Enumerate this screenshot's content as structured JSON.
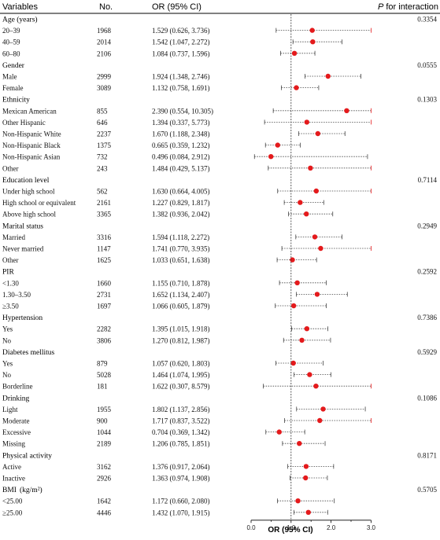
{
  "headers": {
    "variables": "Variables",
    "no": "No.",
    "or": "OR (95% CI)",
    "p_prefix": "P",
    "p_rest": " for interaction"
  },
  "axis": {
    "xlabel": "OR (95% CI)",
    "ticks": [
      "0.0",
      "1.0",
      "2.0",
      "3.0"
    ]
  },
  "chart_data": {
    "type": "forest",
    "xlabel": "OR (95% CI)",
    "xlim": [
      0,
      3
    ],
    "reference_line": 1,
    "marker_color": "#e41a1c",
    "rows": [
      {
        "kind": "group",
        "label": "Age (years)",
        "p": "0.3354"
      },
      {
        "kind": "item",
        "label": "20–39",
        "n": "1968",
        "ci_text": "1.529 (0.626, 3.736)",
        "or": 1.529,
        "lo": 0.626,
        "hi": 3.736
      },
      {
        "kind": "item",
        "label": "40–59",
        "n": "2014",
        "ci_text": "1.542 (1.047, 2.272)",
        "or": 1.542,
        "lo": 1.047,
        "hi": 2.272
      },
      {
        "kind": "item",
        "label": "60–80",
        "n": "2106",
        "ci_text": "1.084 (0.737, 1.596)",
        "or": 1.084,
        "lo": 0.737,
        "hi": 1.596
      },
      {
        "kind": "group",
        "label": "Gender",
        "p": "0.0555"
      },
      {
        "kind": "item",
        "label": "Male",
        "n": "2999",
        "ci_text": "1.924 (1.348, 2.746)",
        "or": 1.924,
        "lo": 1.348,
        "hi": 2.746
      },
      {
        "kind": "item",
        "label": "Female",
        "n": "3089",
        "ci_text": "1.132 (0.758, 1.691)",
        "or": 1.132,
        "lo": 0.758,
        "hi": 1.691
      },
      {
        "kind": "group",
        "label": "Ethnicity",
        "p": "0.1303"
      },
      {
        "kind": "item",
        "label": "Mexican American",
        "n": "855",
        "ci_text": "2.390 (0.554, 10.305)",
        "or": 2.39,
        "lo": 0.554,
        "hi": 10.305
      },
      {
        "kind": "item",
        "label": "Other Hispanic",
        "n": "646",
        "ci_text": "1.394 (0.337, 5.773)",
        "or": 1.394,
        "lo": 0.337,
        "hi": 5.773
      },
      {
        "kind": "item",
        "label": "Non-Hispanic White",
        "n": "2237",
        "ci_text": "1.670 (1.188, 2.348)",
        "or": 1.67,
        "lo": 1.188,
        "hi": 2.348
      },
      {
        "kind": "item",
        "label": "Non-Hispanic Black",
        "n": "1375",
        "ci_text": "0.665 (0.359, 1.232)",
        "or": 0.665,
        "lo": 0.359,
        "hi": 1.232
      },
      {
        "kind": "item",
        "label": "Non-Hispanic Asian",
        "n": "732",
        "ci_text": "0.496 (0.084, 2.912)",
        "or": 0.496,
        "lo": 0.084,
        "hi": 2.912
      },
      {
        "kind": "item",
        "label": "Other",
        "n": "243",
        "ci_text": "1.484 (0.429, 5.137)",
        "or": 1.484,
        "lo": 0.429,
        "hi": 5.137
      },
      {
        "kind": "group",
        "label": "Education level",
        "p": "0.7114"
      },
      {
        "kind": "item",
        "label": "Under high school",
        "n": "562",
        "ci_text": "1.630 (0.664, 4.005)",
        "or": 1.63,
        "lo": 0.664,
        "hi": 4.005
      },
      {
        "kind": "item",
        "label": "High school or equivalent",
        "n": "2161",
        "ci_text": "1.227 (0.829, 1.817)",
        "or": 1.227,
        "lo": 0.829,
        "hi": 1.817
      },
      {
        "kind": "item",
        "label": "Above high school",
        "n": "3365",
        "ci_text": "1.382 (0.936, 2.042)",
        "or": 1.382,
        "lo": 0.936,
        "hi": 2.042
      },
      {
        "kind": "group",
        "label": "Marital status",
        "p": "0.2949"
      },
      {
        "kind": "item",
        "label": "Married",
        "n": "3316",
        "ci_text": "1.594 (1.118, 2.272)",
        "or": 1.594,
        "lo": 1.118,
        "hi": 2.272
      },
      {
        "kind": "item",
        "label": "Never married",
        "n": "1147",
        "ci_text": "1.741 (0.770, 3.935)",
        "or": 1.741,
        "lo": 0.77,
        "hi": 3.935
      },
      {
        "kind": "item",
        "label": "Other",
        "n": "1625",
        "ci_text": "1.033 (0.651, 1.638)",
        "or": 1.033,
        "lo": 0.651,
        "hi": 1.638
      },
      {
        "kind": "group",
        "label": "PIR",
        "p": "0.2592"
      },
      {
        "kind": "item",
        "label": "<1.30",
        "n": "1660",
        "ci_text": "1.155 (0.710, 1.878)",
        "or": 1.155,
        "lo": 0.71,
        "hi": 1.878
      },
      {
        "kind": "item",
        "label": "1.30–3.50",
        "n": "2731",
        "ci_text": "1.652 (1.134, 2.407)",
        "or": 1.652,
        "lo": 1.134,
        "hi": 2.407
      },
      {
        "kind": "item",
        "label": "≥3.50",
        "n": "1697",
        "ci_text": "1.066 (0.605, 1.879)",
        "or": 1.066,
        "lo": 0.605,
        "hi": 1.879
      },
      {
        "kind": "group",
        "label": "Hypertension",
        "p": "0.7386"
      },
      {
        "kind": "item",
        "label": "Yes",
        "n": "2282",
        "ci_text": "1.395 (1.015, 1.918)",
        "or": 1.395,
        "lo": 1.015,
        "hi": 1.918
      },
      {
        "kind": "item",
        "label": "No",
        "n": "3806",
        "ci_text": "1.270 (0.812, 1.987)",
        "or": 1.27,
        "lo": 0.812,
        "hi": 1.987
      },
      {
        "kind": "group",
        "label": "Diabetes mellitus",
        "p": "0.5929"
      },
      {
        "kind": "item",
        "label": "Yes",
        "n": "879",
        "ci_text": "1.057 (0.620, 1.803)",
        "or": 1.057,
        "lo": 0.62,
        "hi": 1.803
      },
      {
        "kind": "item",
        "label": "No",
        "n": "5028",
        "ci_text": "1.464 (1.074, 1.995)",
        "or": 1.464,
        "lo": 1.074,
        "hi": 1.995
      },
      {
        "kind": "item",
        "label": "Borderline",
        "n": "181",
        "ci_text": "1.622 (0.307, 8.579)",
        "or": 1.622,
        "lo": 0.307,
        "hi": 8.579
      },
      {
        "kind": "group",
        "label": "Drinking",
        "p": "0.1086"
      },
      {
        "kind": "item",
        "label": "Light",
        "n": "1955",
        "ci_text": "1.802 (1.137, 2.856)",
        "or": 1.802,
        "lo": 1.137,
        "hi": 2.856
      },
      {
        "kind": "item",
        "label": "Moderate",
        "n": "900",
        "ci_text": "1.717 (0.837, 3.522)",
        "or": 1.717,
        "lo": 0.837,
        "hi": 3.522
      },
      {
        "kind": "item",
        "label": "Excessive",
        "n": "1044",
        "ci_text": "0.704 (0.369, 1.342)",
        "or": 0.704,
        "lo": 0.369,
        "hi": 1.342
      },
      {
        "kind": "item",
        "label": "Missing",
        "n": "2189",
        "ci_text": "1.206 (0.785, 1.851)",
        "or": 1.206,
        "lo": 0.785,
        "hi": 1.851
      },
      {
        "kind": "group",
        "label": "Physical activity",
        "p": "0.8171"
      },
      {
        "kind": "item",
        "label": "Active",
        "n": "3162",
        "ci_text": "1.376 (0.917, 2.064)",
        "or": 1.376,
        "lo": 0.917,
        "hi": 2.064
      },
      {
        "kind": "item",
        "label": "Inactive",
        "n": "2926",
        "ci_text": "1.363 (0.974, 1.908)",
        "or": 1.363,
        "lo": 0.974,
        "hi": 1.908
      },
      {
        "kind": "group",
        "label": "BMI",
        "unit": "(kg/m²)",
        "p": "0.5705"
      },
      {
        "kind": "item",
        "label": "<25.00",
        "n": "1642",
        "ci_text": "1.172 (0.660, 2.080)",
        "or": 1.172,
        "lo": 0.66,
        "hi": 2.08
      },
      {
        "kind": "item",
        "label": "≥25.00",
        "n": "4446",
        "ci_text": "1.432 (1.070, 1.915)",
        "or": 1.432,
        "lo": 1.07,
        "hi": 1.915
      }
    ]
  }
}
